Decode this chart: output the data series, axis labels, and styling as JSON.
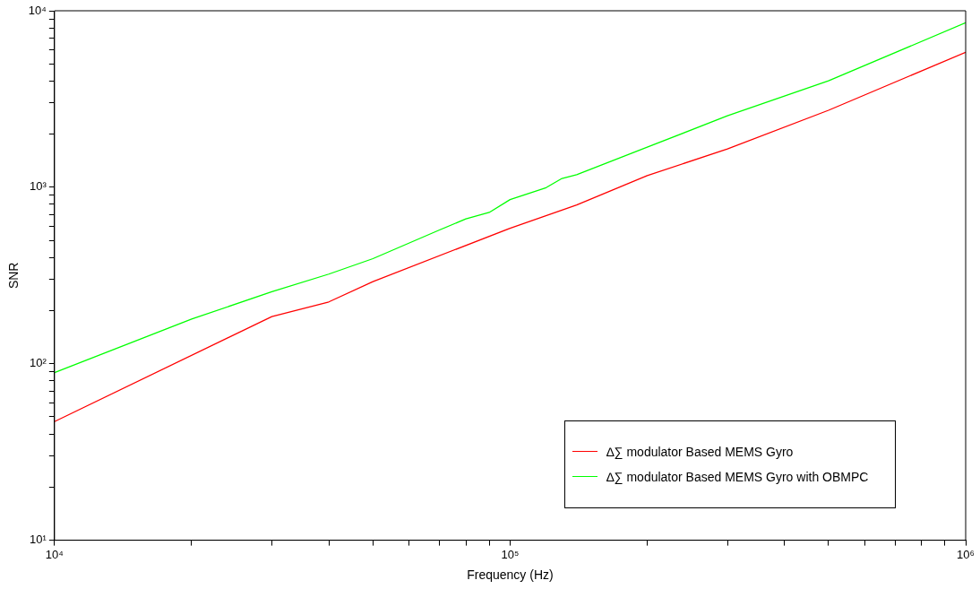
{
  "chart_data": {
    "type": "line",
    "xlabel": "Frequency (Hz)",
    "ylabel": "SNR",
    "log": "xy",
    "grid": false,
    "legend": "bottom right",
    "marker": "none",
    "line_style": "solid",
    "xlim": [
      10000,
      1000000
    ],
    "ylim": [
      10,
      10000
    ],
    "xticks": [
      {
        "value": 10000,
        "label": "10⁴"
      },
      {
        "value": 20000,
        "label": null
      },
      {
        "value": 30000,
        "label": null
      },
      {
        "value": 40000,
        "label": null
      },
      {
        "value": 50000,
        "label": null
      },
      {
        "value": 60000,
        "label": null
      },
      {
        "value": 70000,
        "label": null
      },
      {
        "value": 80000,
        "label": null
      },
      {
        "value": 90000,
        "label": null
      },
      {
        "value": 100000,
        "label": "10⁵"
      },
      {
        "value": 200000,
        "label": null
      },
      {
        "value": 300000,
        "label": null
      },
      {
        "value": 400000,
        "label": null
      },
      {
        "value": 500000,
        "label": null
      },
      {
        "value": 600000,
        "label": null
      },
      {
        "value": 700000,
        "label": null
      },
      {
        "value": 800000,
        "label": null
      },
      {
        "value": 900000,
        "label": null
      },
      {
        "value": 1000000,
        "label": "10⁶"
      }
    ],
    "yticks": [
      {
        "value": 10,
        "label": "10¹"
      },
      {
        "value": 20,
        "label": null
      },
      {
        "value": 30,
        "label": null
      },
      {
        "value": 40,
        "label": null
      },
      {
        "value": 50,
        "label": null
      },
      {
        "value": 60,
        "label": null
      },
      {
        "value": 70,
        "label": null
      },
      {
        "value": 80,
        "label": null
      },
      {
        "value": 90,
        "label": null
      },
      {
        "value": 100,
        "label": "10²"
      },
      {
        "value": 200,
        "label": null
      },
      {
        "value": 300,
        "label": null
      },
      {
        "value": 400,
        "label": null
      },
      {
        "value": 500,
        "label": null
      },
      {
        "value": 600,
        "label": null
      },
      {
        "value": 700,
        "label": null
      },
      {
        "value": 800,
        "label": null
      },
      {
        "value": 900,
        "label": null
      },
      {
        "value": 1000,
        "label": "10³"
      },
      {
        "value": 2000,
        "label": null
      },
      {
        "value": 3000,
        "label": null
      },
      {
        "value": 4000,
        "label": null
      },
      {
        "value": 5000,
        "label": null
      },
      {
        "value": 6000,
        "label": null
      },
      {
        "value": 7000,
        "label": null
      },
      {
        "value": 8000,
        "label": null
      },
      {
        "value": 9000,
        "label": null
      },
      {
        "value": 10000,
        "label": "10⁴"
      }
    ],
    "series": [
      {
        "name": "∆∑ modulator Based MEMS Gyro",
        "color": "#ff0000",
        "x": [
          10000,
          30000,
          40000,
          50000,
          100000,
          140000,
          200000,
          300000,
          500000,
          1000000
        ],
        "values": [
          47,
          185,
          224,
          292,
          586,
          793,
          1164,
          1648,
          2730,
          5820
        ]
      },
      {
        "name": "∆∑ modulator Based MEMS Gyro with OBMPC",
        "color": "#00ff00",
        "x": [
          10000,
          20000,
          30000,
          40000,
          50000,
          70000,
          80000,
          90000,
          100000,
          120000,
          130000,
          140000,
          200000,
          300000,
          500000,
          1000000
        ],
        "values": [
          89,
          179,
          256,
          322,
          394,
          573,
          662,
          720,
          851,
          995,
          1122,
          1177,
          1687,
          2540,
          4010,
          8550
        ]
      }
    ]
  }
}
